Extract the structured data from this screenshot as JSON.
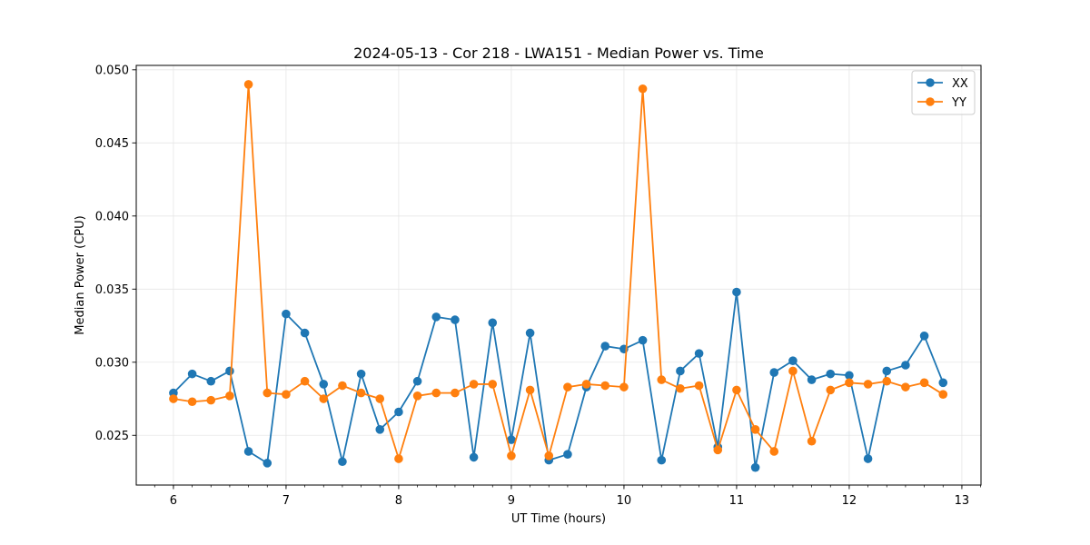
{
  "chart_data": {
    "type": "line",
    "title": "2024-05-13 - Cor 218 - LWA151 - Median Power vs. Time",
    "xlabel": "UT Time (hours)",
    "ylabel": "Median Power (CPU)",
    "xlim": [
      5.67,
      13.17
    ],
    "ylim": [
      0.0216,
      0.0503
    ],
    "xticks": [
      6,
      7,
      8,
      9,
      10,
      11,
      12,
      13
    ],
    "xtick_labels": [
      "6",
      "7",
      "8",
      "9",
      "10",
      "11",
      "12",
      "13"
    ],
    "yticks": [
      0.025,
      0.03,
      0.035,
      0.04,
      0.045,
      0.05
    ],
    "ytick_labels": [
      "0.025",
      "0.030",
      "0.035",
      "0.040",
      "0.045",
      "0.050"
    ],
    "grid": true,
    "legend_position": "top-right",
    "x": [
      6.0,
      6.1667,
      6.3333,
      6.5,
      6.6667,
      6.8333,
      7.0,
      7.1667,
      7.3333,
      7.5,
      7.6667,
      7.8333,
      8.0,
      8.1667,
      8.3333,
      8.5,
      8.6667,
      8.8333,
      9.0,
      9.1667,
      9.3333,
      9.5,
      9.6667,
      9.8333,
      10.0,
      10.1667,
      10.3333,
      10.5,
      10.6667,
      10.8333,
      11.0,
      11.1667,
      11.3333,
      11.5,
      11.6667,
      11.8333,
      12.0,
      12.1667,
      12.3333,
      12.5,
      12.6667,
      12.8333
    ],
    "series": [
      {
        "name": "XX",
        "color": "#1f77b4",
        "values": [
          0.0279,
          0.0292,
          0.0287,
          0.0294,
          0.0239,
          0.0231,
          0.0333,
          0.032,
          0.0285,
          0.0232,
          0.0292,
          0.0254,
          0.0266,
          0.0287,
          0.0331,
          0.0329,
          0.0235,
          0.0327,
          0.0247,
          0.032,
          0.0233,
          0.0237,
          0.0283,
          0.0311,
          0.0309,
          0.0315,
          0.0233,
          0.0294,
          0.0306,
          0.0242,
          0.0348,
          0.0228,
          0.0293,
          0.0301,
          0.0288,
          0.0292,
          0.0291,
          0.0234,
          0.0294,
          0.0298,
          0.0318,
          0.0286
        ]
      },
      {
        "name": "YY",
        "color": "#ff7f0e",
        "values": [
          0.0275,
          0.0273,
          0.0274,
          0.0277,
          0.049,
          0.0279,
          0.0278,
          0.0287,
          0.0275,
          0.0284,
          0.0279,
          0.0275,
          0.0234,
          0.0277,
          0.0279,
          0.0279,
          0.0285,
          0.0285,
          0.0236,
          0.0281,
          0.0236,
          0.0283,
          0.0285,
          0.0284,
          0.0283,
          0.0487,
          0.0288,
          0.0282,
          0.0284,
          0.024,
          0.0281,
          0.0254,
          0.0239,
          0.0294,
          0.0246,
          0.0281,
          0.0286,
          0.0285,
          0.0287,
          0.0283,
          0.0286,
          0.0278
        ]
      }
    ]
  }
}
